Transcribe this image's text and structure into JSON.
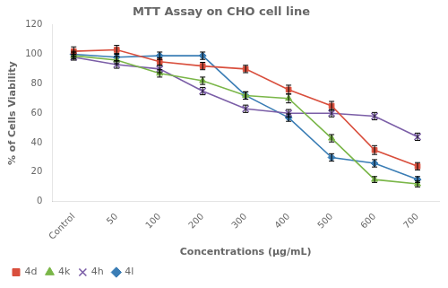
{
  "chart_data": {
    "type": "line",
    "title": "MTT Assay on CHO cell line",
    "xlabel": "Concentrations (μg/mL)",
    "ylabel": "% of Cells Viability",
    "categories": [
      "Control",
      "50",
      "100",
      "200",
      "300",
      "400",
      "500",
      "600",
      "700"
    ],
    "series": [
      {
        "name": "4d",
        "color": "#d94f3d",
        "marker": "square",
        "line_style": "solid",
        "values": [
          102,
          103,
          95,
          92,
          90,
          76,
          65,
          35,
          24
        ],
        "errors": [
          3.0,
          3.0,
          2.5,
          2.5,
          2.5,
          3.0,
          3.0,
          3.0,
          2.5
        ]
      },
      {
        "name": "4k",
        "color": "#7ab648",
        "marker": "triangle",
        "line_style": "solid",
        "values": [
          99,
          96,
          87,
          82,
          72,
          70,
          43,
          15,
          12
        ],
        "errors": [
          2.0,
          2.5,
          2.5,
          2.5,
          2.5,
          3.0,
          2.5,
          2.0,
          2.0
        ]
      },
      {
        "name": "4h",
        "color": "#7b5ea7",
        "marker": "x",
        "line_style": "solid",
        "values": [
          98,
          93,
          90,
          75,
          63,
          60,
          60,
          58,
          44
        ],
        "errors": [
          2.0,
          2.5,
          2.5,
          2.5,
          2.5,
          2.5,
          2.5,
          2.5,
          2.5
        ]
      },
      {
        "name": "4l",
        "color": "#3a7db5",
        "marker": "diamond",
        "line_style": "solid",
        "values": [
          100,
          98,
          99,
          99,
          72,
          57,
          30,
          26,
          15
        ],
        "errors": [
          2.0,
          2.5,
          2.5,
          2.5,
          2.5,
          2.5,
          2.5,
          2.5,
          2.0
        ]
      }
    ],
    "ylim": [
      0,
      120
    ],
    "yticks": [
      0,
      20,
      40,
      60,
      80,
      100,
      120
    ],
    "grid": false,
    "legend": "lower left"
  }
}
